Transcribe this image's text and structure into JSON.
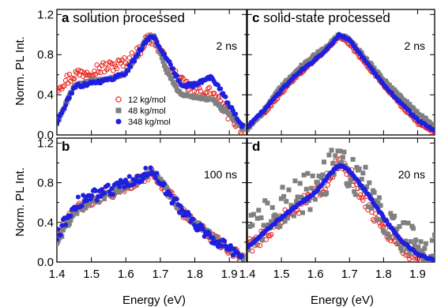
{
  "figure": {
    "ylabel": "Norm. PL Int.",
    "xlabel": "Energy (eV)"
  },
  "colors": {
    "12": "#e8241d",
    "48": "#808080",
    "348": "#1f1fe0"
  },
  "chart_data": [
    {
      "type": "scatter",
      "panel_letter": "a",
      "panel_title": "solution processed",
      "time_label": "2 ns",
      "xlim": [
        1.4,
        1.95
      ],
      "ylim": [
        0.0,
        1.25
      ],
      "x_ticks": [],
      "y_ticks": [
        "0.0",
        "0.4",
        "0.8",
        "1.2"
      ],
      "legend": [
        "12 kg/mol",
        "48 kg/mol",
        "348 kg/mol"
      ],
      "series": [
        {
          "name": "12 kg/mol",
          "marker": "open-circle",
          "color": "#e8241d",
          "x": [
            1.4,
            1.45,
            1.5,
            1.55,
            1.6,
            1.63,
            1.66,
            1.68,
            1.72,
            1.76,
            1.8,
            1.85,
            1.9,
            1.94
          ],
          "y": [
            0.48,
            0.6,
            0.65,
            0.68,
            0.72,
            0.8,
            0.95,
            0.96,
            0.7,
            0.52,
            0.45,
            0.42,
            0.2,
            0.05
          ]
        },
        {
          "name": "48 kg/mol",
          "marker": "filled-square",
          "color": "#808080",
          "x": [
            1.4,
            1.45,
            1.5,
            1.55,
            1.6,
            1.63,
            1.66,
            1.68,
            1.72,
            1.76,
            1.8,
            1.85,
            1.9,
            1.94
          ],
          "y": [
            0.12,
            0.48,
            0.55,
            0.55,
            0.62,
            0.78,
            0.95,
            1.0,
            0.62,
            0.4,
            0.38,
            0.35,
            0.2,
            0.06
          ]
        },
        {
          "name": "348 kg/mol",
          "marker": "filled-circle",
          "color": "#1f1fe0",
          "x": [
            1.4,
            1.45,
            1.5,
            1.55,
            1.6,
            1.63,
            1.66,
            1.68,
            1.72,
            1.76,
            1.8,
            1.85,
            1.9,
            1.94
          ],
          "y": [
            0.12,
            0.48,
            0.52,
            0.55,
            0.62,
            0.78,
            0.95,
            0.98,
            0.75,
            0.5,
            0.5,
            0.58,
            0.3,
            0.08
          ]
        }
      ]
    },
    {
      "type": "scatter",
      "panel_letter": "c",
      "panel_title": "solid-state processed",
      "time_label": "2 ns",
      "xlim": [
        1.4,
        1.95
      ],
      "ylim": [
        0.0,
        1.25
      ],
      "x_ticks": [],
      "y_ticks": [],
      "series": [
        {
          "name": "12 kg/mol",
          "marker": "open-circle",
          "color": "#e8241d",
          "x": [
            1.4,
            1.45,
            1.5,
            1.55,
            1.6,
            1.64,
            1.67,
            1.7,
            1.75,
            1.8,
            1.85,
            1.9,
            1.95
          ],
          "y": [
            0.08,
            0.22,
            0.42,
            0.6,
            0.75,
            0.88,
            0.98,
            0.9,
            0.7,
            0.5,
            0.3,
            0.12,
            0.02
          ]
        },
        {
          "name": "48 kg/mol",
          "marker": "filled-square",
          "color": "#808080",
          "x": [
            1.4,
            1.45,
            1.5,
            1.55,
            1.6,
            1.64,
            1.67,
            1.7,
            1.75,
            1.8,
            1.85,
            1.9,
            1.95
          ],
          "y": [
            0.06,
            0.25,
            0.48,
            0.66,
            0.8,
            0.9,
            1.0,
            0.95,
            0.75,
            0.55,
            0.38,
            0.22,
            0.08
          ]
        },
        {
          "name": "348 kg/mol",
          "marker": "filled-circle",
          "color": "#1f1fe0",
          "x": [
            1.4,
            1.45,
            1.5,
            1.55,
            1.6,
            1.64,
            1.67,
            1.7,
            1.75,
            1.8,
            1.85,
            1.9,
            1.95
          ],
          "y": [
            0.08,
            0.25,
            0.45,
            0.62,
            0.75,
            0.88,
            1.0,
            0.95,
            0.72,
            0.5,
            0.32,
            0.15,
            0.04
          ]
        }
      ]
    },
    {
      "type": "scatter",
      "panel_letter": "b",
      "panel_title": "",
      "time_label": "100 ns",
      "xlim": [
        1.4,
        1.95
      ],
      "ylim": [
        0.0,
        1.25
      ],
      "x_ticks": [
        "1.4",
        "1.5",
        "1.6",
        "1.7",
        "1.8",
        "1.9"
      ],
      "y_ticks": [
        "0.0",
        "0.4",
        "0.8",
        "1.2"
      ],
      "series": [
        {
          "name": "12 kg/mol",
          "marker": "open-circle",
          "color": "#e8241d",
          "x": [
            1.4,
            1.43,
            1.46,
            1.5,
            1.55,
            1.6,
            1.65,
            1.68,
            1.72,
            1.76,
            1.8,
            1.85,
            1.9,
            1.94
          ],
          "y": [
            0.25,
            0.42,
            0.55,
            0.6,
            0.68,
            0.76,
            0.85,
            0.9,
            0.72,
            0.52,
            0.38,
            0.25,
            0.12,
            0.04
          ]
        },
        {
          "name": "48 kg/mol",
          "marker": "filled-square",
          "color": "#808080",
          "x": [
            1.4,
            1.43,
            1.46,
            1.5,
            1.55,
            1.6,
            1.65,
            1.68,
            1.72,
            1.76,
            1.8,
            1.85,
            1.9,
            1.94
          ],
          "y": [
            0.2,
            0.38,
            0.52,
            0.6,
            0.68,
            0.76,
            0.85,
            0.92,
            0.72,
            0.52,
            0.4,
            0.26,
            0.12,
            0.04
          ]
        },
        {
          "name": "348 kg/mol",
          "marker": "filled-circle",
          "color": "#1f1fe0",
          "x": [
            1.4,
            1.43,
            1.46,
            1.5,
            1.55,
            1.6,
            1.65,
            1.68,
            1.72,
            1.76,
            1.8,
            1.85,
            1.9,
            1.94
          ],
          "y": [
            0.25,
            0.45,
            0.6,
            0.66,
            0.72,
            0.8,
            0.88,
            0.92,
            0.72,
            0.52,
            0.38,
            0.25,
            0.12,
            0.04
          ]
        }
      ]
    },
    {
      "type": "scatter",
      "panel_letter": "d",
      "panel_title": "",
      "time_label": "20 ns",
      "xlim": [
        1.4,
        1.95
      ],
      "ylim": [
        0.0,
        1.25
      ],
      "x_ticks": [
        "1.4",
        "1.5",
        "1.6",
        "1.7",
        "1.8",
        "1.9"
      ],
      "y_ticks": [],
      "series": [
        {
          "name": "12 kg/mol",
          "marker": "open-circle",
          "color": "#e8241d",
          "x": [
            1.4,
            1.45,
            1.5,
            1.55,
            1.6,
            1.64,
            1.67,
            1.7,
            1.75,
            1.8,
            1.85,
            1.9,
            1.95
          ],
          "y": [
            0.15,
            0.28,
            0.42,
            0.55,
            0.68,
            0.85,
            1.0,
            0.9,
            0.6,
            0.35,
            0.15,
            0.05,
            0.02
          ]
        },
        {
          "name": "48 kg/mol",
          "marker": "filled-square",
          "color": "#808080",
          "x": [
            1.4,
            1.45,
            1.5,
            1.55,
            1.6,
            1.64,
            1.67,
            1.7,
            1.75,
            1.8,
            1.85,
            1.9,
            1.95
          ],
          "y": [
            0.25,
            0.42,
            0.55,
            0.65,
            0.75,
            0.9,
            1.05,
            0.95,
            0.75,
            0.5,
            0.3,
            0.15,
            0.08
          ]
        },
        {
          "name": "348 kg/mol",
          "marker": "filled-circle",
          "color": "#1f1fe0",
          "x": [
            1.4,
            1.45,
            1.5,
            1.55,
            1.6,
            1.64,
            1.67,
            1.7,
            1.75,
            1.8,
            1.85,
            1.9,
            1.95
          ],
          "y": [
            0.15,
            0.3,
            0.45,
            0.58,
            0.7,
            0.88,
            0.98,
            0.92,
            0.7,
            0.45,
            0.22,
            0.08,
            0.02
          ]
        }
      ]
    }
  ]
}
